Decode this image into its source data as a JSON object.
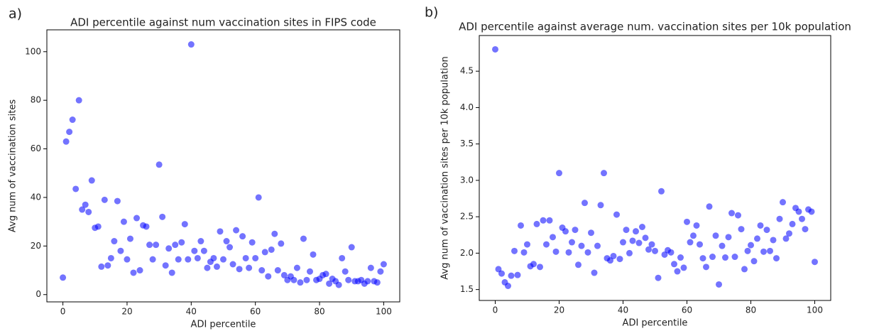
{
  "chart_data": [
    {
      "type": "scatter",
      "panel": "a)",
      "title": "ADI percentile against num vaccination sites in FIPS code",
      "x_label": "ADI percentile",
      "y_label": "Avg num of vaccination sites",
      "color": "#0000ff",
      "x": [
        0,
        1,
        2,
        3,
        4,
        5,
        6,
        7,
        8,
        9,
        10,
        11,
        12,
        13,
        14,
        15,
        16,
        17,
        18,
        19,
        20,
        21,
        22,
        23,
        24,
        25,
        26,
        27,
        28,
        29,
        30,
        31,
        32,
        33,
        34,
        35,
        36,
        37,
        38,
        39,
        40,
        41,
        42,
        43,
        44,
        45,
        46,
        47,
        48,
        49,
        50,
        51,
        52,
        53,
        54,
        55,
        56,
        57,
        58,
        59,
        60,
        61,
        62,
        63,
        64,
        65,
        66,
        67,
        68,
        69,
        70,
        71,
        72,
        73,
        74,
        75,
        76,
        77,
        78,
        79,
        80,
        81,
        82,
        83,
        84,
        85,
        86,
        87,
        88,
        89,
        90,
        91,
        92,
        93,
        94,
        95,
        96,
        97,
        98,
        99,
        100
      ],
      "values": [
        7,
        63,
        67,
        72,
        43.5,
        80,
        35,
        37,
        34,
        47,
        27.5,
        28,
        11.5,
        39,
        12,
        15,
        22,
        38.5,
        18,
        30,
        14.5,
        23,
        9,
        31.5,
        10,
        28.5,
        28,
        20.5,
        14.5,
        20.5,
        53.5,
        32,
        12,
        19,
        9,
        20.5,
        14.5,
        21.5,
        29,
        14.5,
        103,
        18,
        15,
        22,
        18,
        11,
        13.5,
        15,
        11.5,
        26,
        14.5,
        22,
        19.5,
        12.5,
        26.5,
        10.5,
        24,
        15,
        11,
        21.5,
        15,
        40,
        10,
        17.5,
        7.5,
        18.5,
        25,
        10,
        21,
        8,
        6,
        7.5,
        6,
        11,
        5,
        23,
        6,
        9.5,
        16.5,
        6,
        6.5,
        8,
        8.5,
        4.5,
        6.5,
        5.5,
        4,
        15,
        9.5,
        6,
        19.5,
        5.5,
        5.5,
        6,
        4.5,
        5.5,
        11,
        5.5,
        5,
        9.5,
        12.5
      ],
      "xlim": [
        -5,
        105
      ],
      "ylim": [
        -3,
        109
      ],
      "xticks": [
        0,
        20,
        40,
        60,
        80,
        100
      ],
      "yticks": [
        0,
        20,
        40,
        60,
        80,
        100
      ]
    },
    {
      "type": "scatter",
      "panel": "b)",
      "title": "ADI percentile against average num. vaccination sites per 10k population",
      "x_label": "ADI percentile",
      "y_label": "Avg num of vaccination sites per 10k population",
      "color": "#0000ff",
      "x": [
        0,
        1,
        2,
        3,
        4,
        5,
        6,
        7,
        8,
        9,
        10,
        11,
        12,
        13,
        14,
        15,
        16,
        17,
        18,
        19,
        20,
        21,
        22,
        23,
        24,
        25,
        26,
        27,
        28,
        29,
        30,
        31,
        32,
        33,
        34,
        35,
        36,
        37,
        38,
        39,
        40,
        41,
        42,
        43,
        44,
        45,
        46,
        47,
        48,
        49,
        50,
        51,
        52,
        53,
        54,
        55,
        56,
        57,
        58,
        59,
        60,
        61,
        62,
        63,
        64,
        65,
        66,
        67,
        68,
        69,
        70,
        71,
        72,
        73,
        74,
        75,
        76,
        77,
        78,
        79,
        80,
        81,
        82,
        83,
        84,
        85,
        86,
        87,
        88,
        89,
        90,
        91,
        92,
        93,
        94,
        95,
        96,
        97,
        98,
        99,
        100
      ],
      "values": [
        4.8,
        1.78,
        1.72,
        1.6,
        1.55,
        1.69,
        2.03,
        1.7,
        2.38,
        2.01,
        2.12,
        1.82,
        1.85,
        2.4,
        1.81,
        2.45,
        2.12,
        2.45,
        2.22,
        2.02,
        3.1,
        2.35,
        2.3,
        2.01,
        2.15,
        2.32,
        1.84,
        2.1,
        2.69,
        2.01,
        2.28,
        1.73,
        2.1,
        2.66,
        3.1,
        1.93,
        1.9,
        1.96,
        2.53,
        1.92,
        2.15,
        2.32,
        2.0,
        2.17,
        2.3,
        2.14,
        2.36,
        2.21,
        2.05,
        2.12,
        2.03,
        1.66,
        2.85,
        1.98,
        2.04,
        2.01,
        1.85,
        1.75,
        1.94,
        1.8,
        2.43,
        2.15,
        2.24,
        2.38,
        2.12,
        1.93,
        1.81,
        2.64,
        1.95,
        2.24,
        1.57,
        2.1,
        1.94,
        2.22,
        2.55,
        1.95,
        2.52,
        2.33,
        1.78,
        2.03,
        2.11,
        1.89,
        2.2,
        2.38,
        2.02,
        2.32,
        2.03,
        2.18,
        1.93,
        2.47,
        2.7,
        2.2,
        2.27,
        2.4,
        2.62,
        2.57,
        2.47,
        2.33,
        2.6,
        2.57,
        1.88
      ],
      "xlim": [
        -5,
        105
      ],
      "ylim": [
        1.35,
        4.99
      ],
      "xticks": [
        0,
        20,
        40,
        60,
        80,
        100
      ],
      "yticks": [
        1.5,
        {
          "value": 2,
          "label": "2.0"
        },
        2.5,
        {
          "value": 3,
          "label": "3.0"
        },
        3.5,
        {
          "value": 4,
          "label": "4.0"
        },
        4.5
      ]
    }
  ]
}
